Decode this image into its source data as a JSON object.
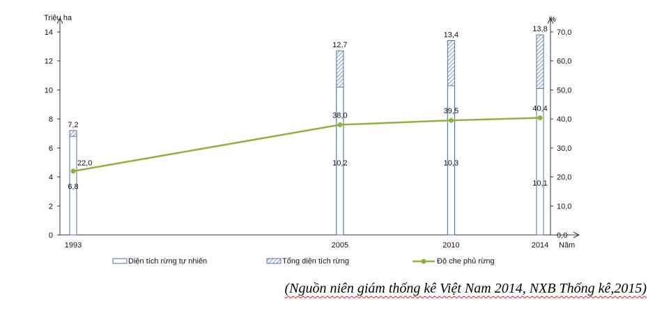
{
  "chart_data": {
    "type": "bar+line",
    "categories": [
      "1993",
      "2005",
      "2010",
      "2014"
    ],
    "x_unit_label": "Năm",
    "left_axis": {
      "unit_label": "Triệu ha",
      "ylim": [
        0,
        14
      ],
      "ticks": [
        "0",
        "2",
        "4",
        "6",
        "8",
        "10",
        "12",
        "14"
      ]
    },
    "right_axis": {
      "unit_label": "%",
      "ylim": [
        0,
        70
      ],
      "ticks": [
        "0,0",
        "10,0",
        "20,0",
        "30,0",
        "40,0",
        "50,0",
        "60,0",
        "70,0"
      ]
    },
    "series": [
      {
        "name": "Diện tích rừng tự nhiên",
        "kind": "bar",
        "axis": "left",
        "values": [
          6.8,
          10.2,
          10.3,
          10.1
        ],
        "labels": [
          "6,8",
          "10,2",
          "10,3",
          "10,1"
        ],
        "fill": "#ffffff",
        "stroke": "#4f6fa8"
      },
      {
        "name": "Tổng diện tích rừng",
        "kind": "bar",
        "axis": "left",
        "values": [
          7.2,
          12.7,
          13.4,
          13.8
        ],
        "labels": [
          "7,2",
          "12,7",
          "13,4",
          "13,8"
        ],
        "fill": "hatched",
        "stroke": "#4f6fa8"
      },
      {
        "name": "Độ che phủ rừng",
        "kind": "line",
        "axis": "right",
        "values": [
          22.0,
          38.0,
          39.5,
          40.4
        ],
        "labels": [
          "22,0",
          "38,0",
          "39,5",
          "40,4"
        ],
        "color": "#8db33a"
      }
    ],
    "legend_position": "bottom"
  },
  "source_note": "(Nguồn niên giám thống kê Việt Nam 2014, NXB Thống kê,2015)"
}
